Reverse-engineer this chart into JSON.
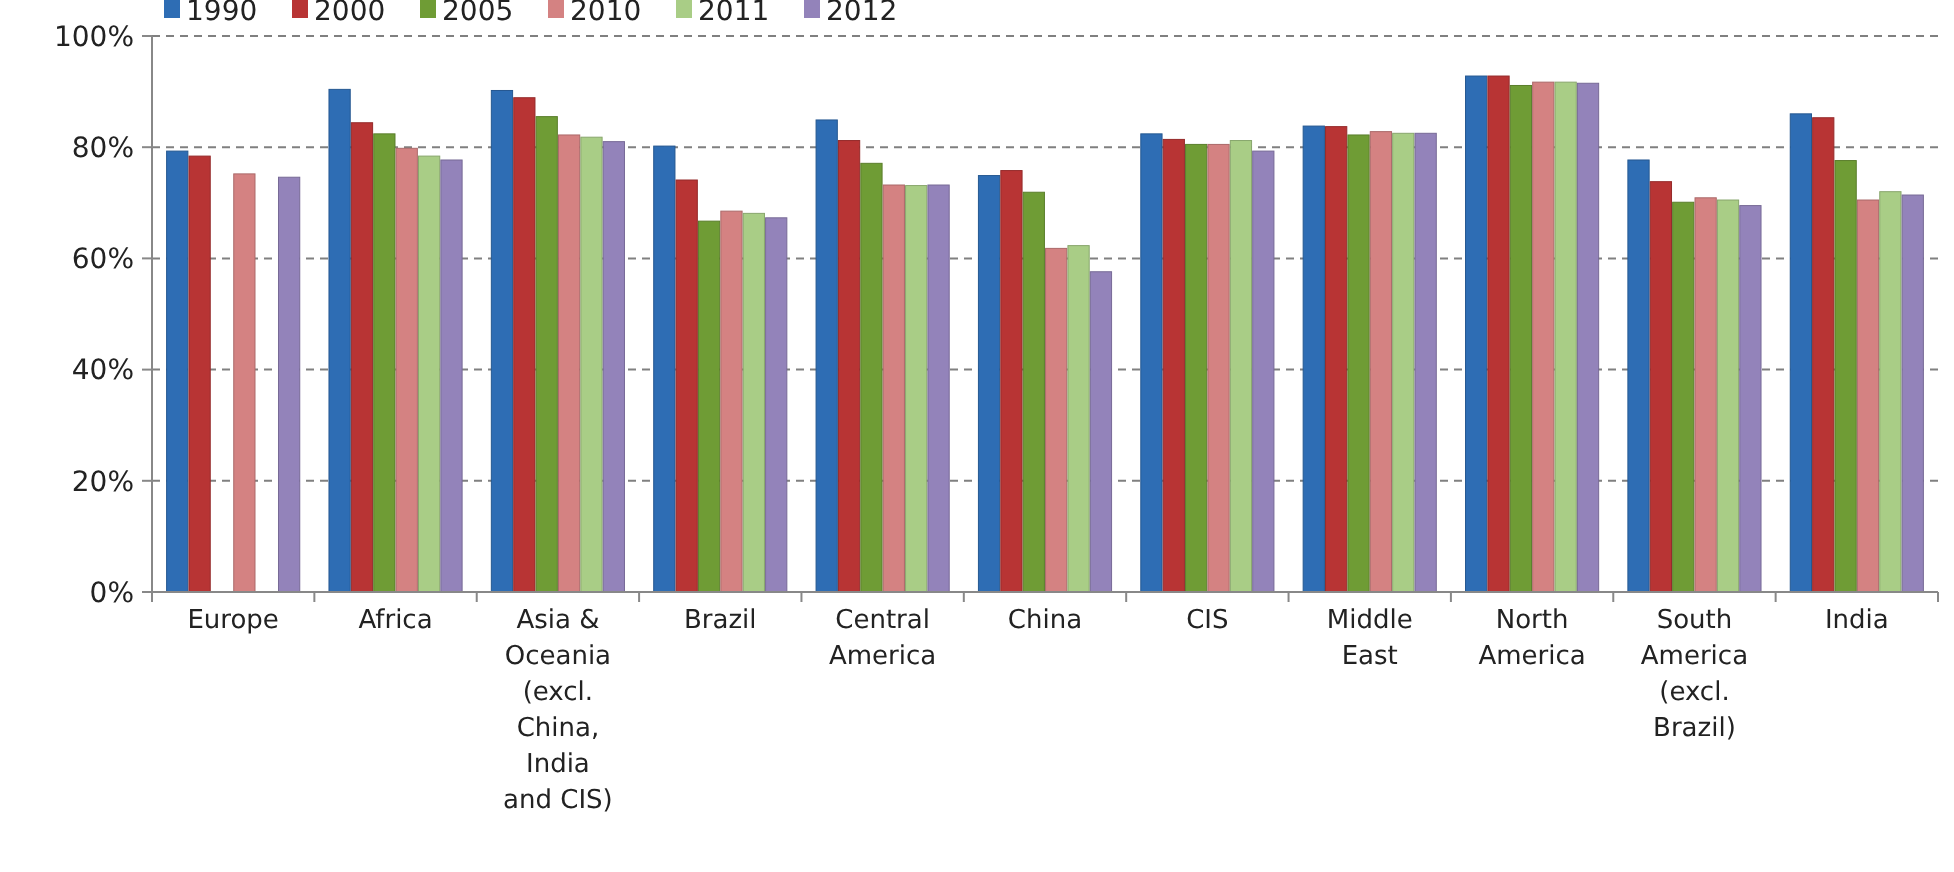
{
  "chart_data": {
    "type": "bar",
    "categories": [
      "Europe",
      "Africa",
      "Asia & Oceania (excl. China, India and CIS)",
      "Brazil",
      "Central America",
      "China",
      "CIS",
      "Middle East",
      "North America",
      "South America (excl. Brazil)",
      "India"
    ],
    "series": [
      {
        "name": "1990",
        "color": "#2e6db4",
        "values": [
          79.3,
          90.4,
          90.2,
          80.2,
          84.9,
          74.9,
          82.4,
          83.8,
          92.8,
          77.7,
          86.0
        ]
      },
      {
        "name": "2000",
        "color": "#b83434",
        "values": [
          78.4,
          84.4,
          88.9,
          74.1,
          81.2,
          75.8,
          81.4,
          83.7,
          92.8,
          73.8,
          85.3
        ]
      },
      {
        "name": "2005",
        "color": "#6f9c35",
        "values": [
          null,
          82.4,
          85.5,
          66.7,
          77.1,
          71.9,
          80.5,
          82.2,
          91.1,
          70.1,
          77.6
        ]
      },
      {
        "name": "2010",
        "color": "#d48282",
        "values": [
          75.2,
          79.8,
          82.2,
          68.5,
          73.2,
          61.8,
          80.5,
          82.8,
          91.7,
          70.9,
          70.5
        ]
      },
      {
        "name": "2011",
        "color": "#a9cd86",
        "values": [
          null,
          78.4,
          81.8,
          68.1,
          73.1,
          62.3,
          81.2,
          82.5,
          91.7,
          70.5,
          72.0
        ]
      },
      {
        "name": "2012",
        "color": "#9383ba",
        "values": [
          74.6,
          77.7,
          81.0,
          67.3,
          73.2,
          57.6,
          79.3,
          82.5,
          91.5,
          69.5,
          71.4
        ]
      }
    ],
    "ylim": [
      0,
      100
    ],
    "yticks": [
      {
        "value": 0,
        "label": "0%"
      },
      {
        "value": 20,
        "label": "20%"
      },
      {
        "value": 40,
        "label": "40%"
      },
      {
        "value": 60,
        "label": "60%"
      },
      {
        "value": 80,
        "label": "80%"
      },
      {
        "value": 100,
        "label": "100%"
      }
    ],
    "grid": "y",
    "legend": "top"
  }
}
